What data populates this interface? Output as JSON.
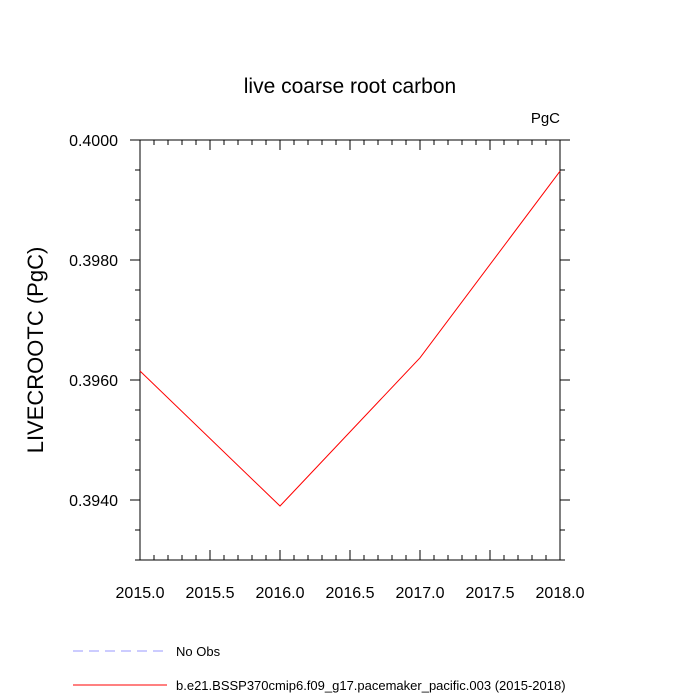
{
  "chart_data": {
    "type": "line",
    "title": "live coarse root carbon",
    "units": "PgC",
    "xlabel": "",
    "ylabel": "LIVECROOTC  (PgC)",
    "xlim": [
      2015.0,
      2018.0
    ],
    "ylim": [
      0.393,
      0.4
    ],
    "xticks": [
      "2015.0",
      "2015.5",
      "2016.0",
      "2016.5",
      "2017.0",
      "2017.5",
      "2018.0"
    ],
    "yticks": [
      "0.3940",
      "0.3960",
      "0.3980",
      "0.4000"
    ],
    "grid": false,
    "legend_position": "bottom",
    "series": [
      {
        "name": "b.e21.BSSP370cmip6.f09_g17.pacemaker_pacific.003 (2015-2018)",
        "color": "#ff0000",
        "style": "solid",
        "x": [
          2015,
          2016,
          2017,
          2018
        ],
        "y": [
          0.39615,
          0.3939,
          0.39637,
          0.39948
        ]
      }
    ],
    "legend": [
      {
        "label": "No Obs",
        "color": "#9999ff",
        "style": "dashed"
      },
      {
        "label": "b.e21.BSSP370cmip6.f09_g17.pacemaker_pacific.003 (2015-2018)",
        "color": "#ff0000",
        "style": "solid"
      }
    ]
  }
}
